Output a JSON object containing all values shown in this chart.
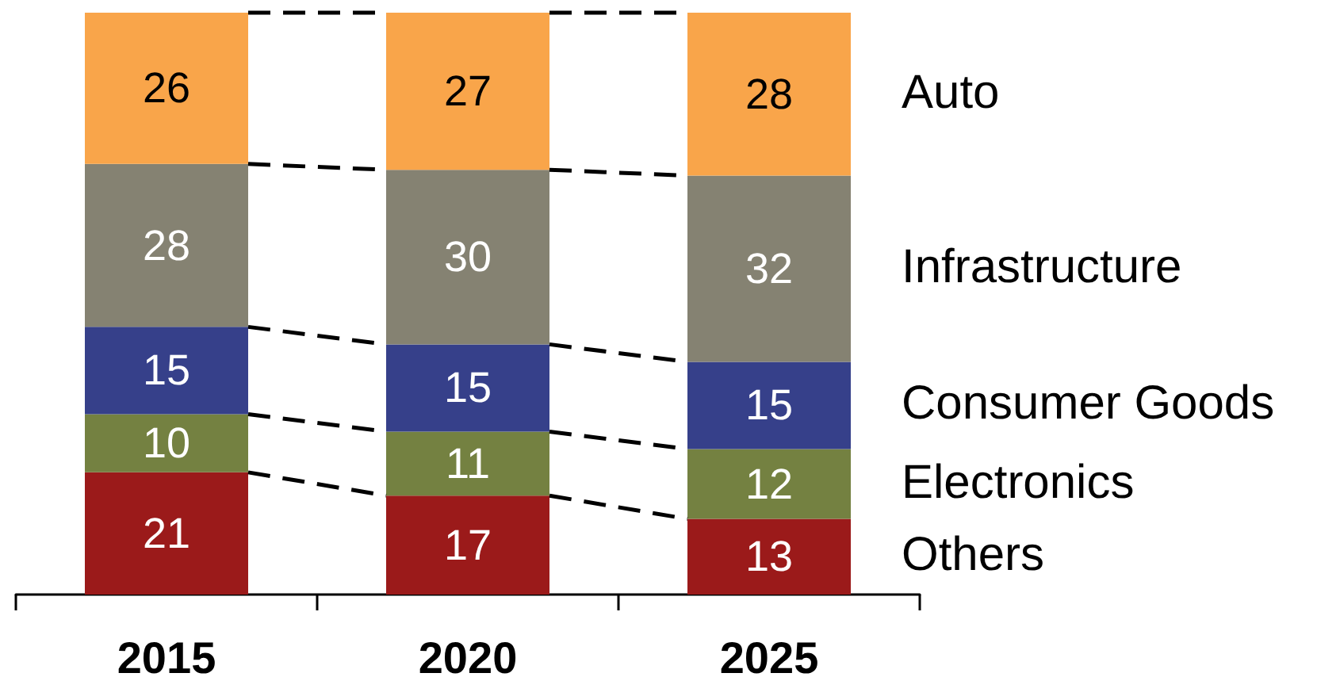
{
  "chart_data": {
    "type": "bar",
    "stacked": true,
    "data_labels": true,
    "grid": false,
    "legend": false,
    "categories": [
      "2015",
      "2020",
      "2025"
    ],
    "series": [
      {
        "name": "Others",
        "color": "#9b1a1a",
        "values": [
          21,
          17,
          13
        ]
      },
      {
        "name": "Electronics",
        "color": "#748141",
        "values": [
          10,
          11,
          12
        ]
      },
      {
        "name": "Consumer Goods",
        "color": "#36408a",
        "values": [
          15,
          15,
          15
        ]
      },
      {
        "name": "Infrastructure",
        "color": "#858272",
        "values": [
          28,
          30,
          32
        ]
      },
      {
        "name": "Auto",
        "color": "#f9a54a",
        "values": [
          26,
          27,
          28
        ]
      }
    ]
  }
}
